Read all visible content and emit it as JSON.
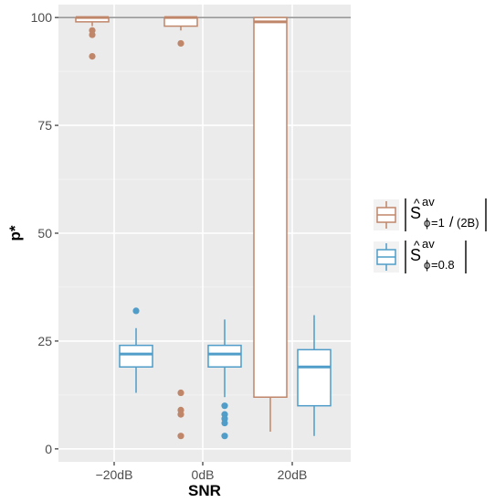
{
  "chart_data": {
    "type": "boxplot",
    "xlabel": "SNR",
    "ylabel": "p*",
    "categories": [
      "−20dB",
      "0dB",
      "20dB"
    ],
    "ylim": [
      -3,
      103
    ],
    "yticks": [
      0,
      25,
      50,
      75,
      100
    ],
    "grid": true,
    "reference_line": {
      "y": 100,
      "color": "#999999"
    },
    "legend_position": "right",
    "series": [
      {
        "legend": {
          "base": "S",
          "hat": "^",
          "sup": "av",
          "sub_phi": "ϕ",
          "sub_eq": "=1",
          "sub_slash": "/",
          "sub_paren": "(2B)"
        },
        "color": "#c0866a",
        "boxes": [
          {
            "category": "−20dB",
            "whisker_low": 98,
            "q1": 99,
            "median": 100,
            "q3": 100,
            "whisker_high": 100,
            "outliers": [
              97,
              96,
              91
            ]
          },
          {
            "category": "0dB",
            "whisker_low": 97,
            "q1": 98,
            "median": 100,
            "q3": 100,
            "whisker_high": 100,
            "outliers": [
              94,
              13,
              9,
              8,
              3
            ]
          },
          {
            "category": "20dB",
            "whisker_low": 4,
            "q1": 12,
            "median": 99,
            "q3": 100,
            "whisker_high": 100,
            "outliers": []
          }
        ]
      },
      {
        "legend": {
          "base": "S",
          "hat": "^",
          "sup": "av",
          "sub_phi": "ϕ",
          "sub_eq": "=0.8"
        },
        "color": "#4f9dc8",
        "boxes": [
          {
            "category": "−20dB",
            "whisker_low": 13,
            "q1": 19,
            "median": 22,
            "q3": 24,
            "whisker_high": 28,
            "outliers": [
              32
            ]
          },
          {
            "category": "0dB",
            "whisker_low": 12,
            "q1": 19,
            "median": 22,
            "q3": 24,
            "whisker_high": 30,
            "outliers": [
              10,
              8,
              7,
              6,
              3
            ]
          },
          {
            "category": "20dB",
            "whisker_low": 3,
            "q1": 10,
            "median": 19,
            "q3": 23,
            "whisker_high": 31,
            "outliers": []
          }
        ]
      }
    ]
  }
}
